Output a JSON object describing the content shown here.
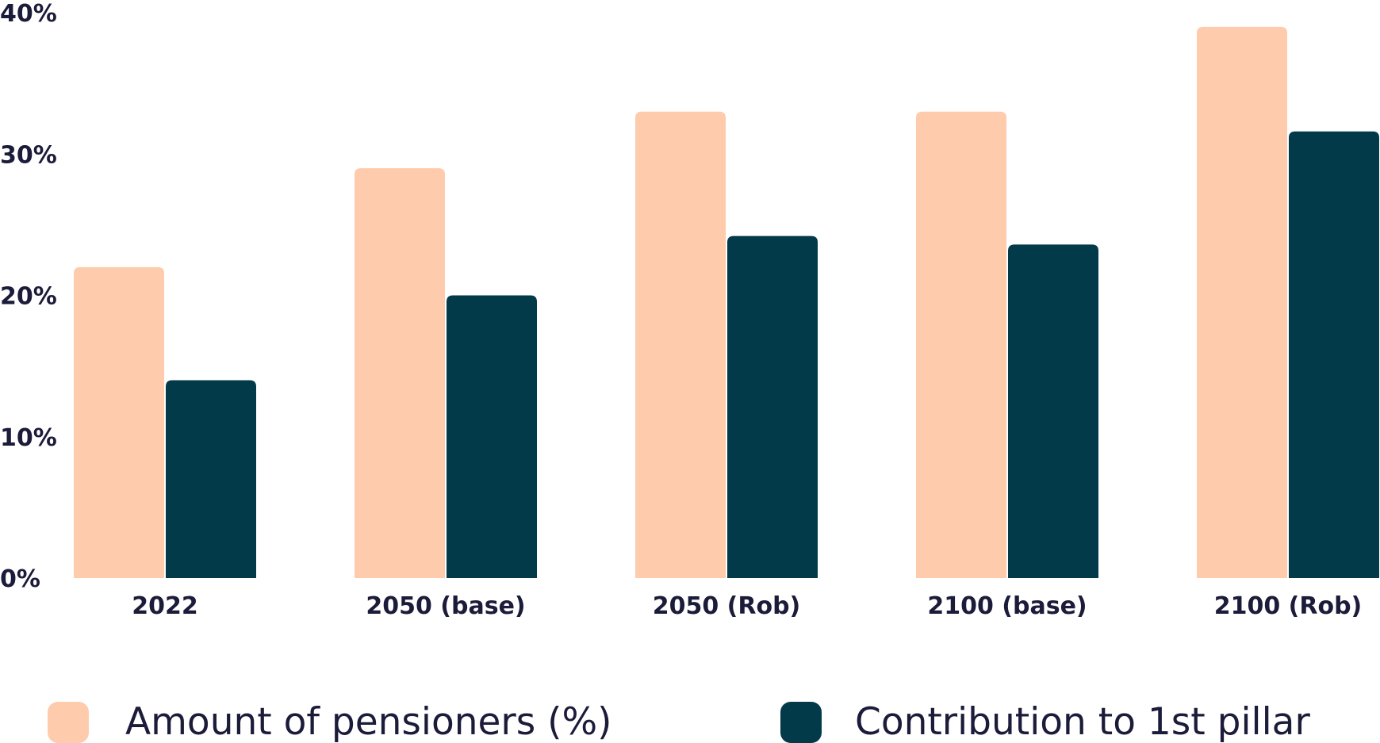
{
  "chart_data": {
    "type": "bar",
    "categories": [
      "2022",
      "2050 (base)",
      "2050 (Rob)",
      "2100 (base)",
      "2100 (Rob)"
    ],
    "series": [
      {
        "name": "Amount of pensioners (%)",
        "color": "#fecbad",
        "values": [
          22,
          29,
          33,
          33,
          39
        ]
      },
      {
        "name": "Contribution to 1st pillar",
        "color": "#033a49",
        "values": [
          14,
          20,
          24.2,
          23.6,
          31.6
        ]
      }
    ],
    "yticks": [
      "0%",
      "10%",
      "20%",
      "30%",
      "40%"
    ],
    "ylim": [
      0,
      40
    ],
    "grid": false,
    "legend_position": "bottom"
  }
}
